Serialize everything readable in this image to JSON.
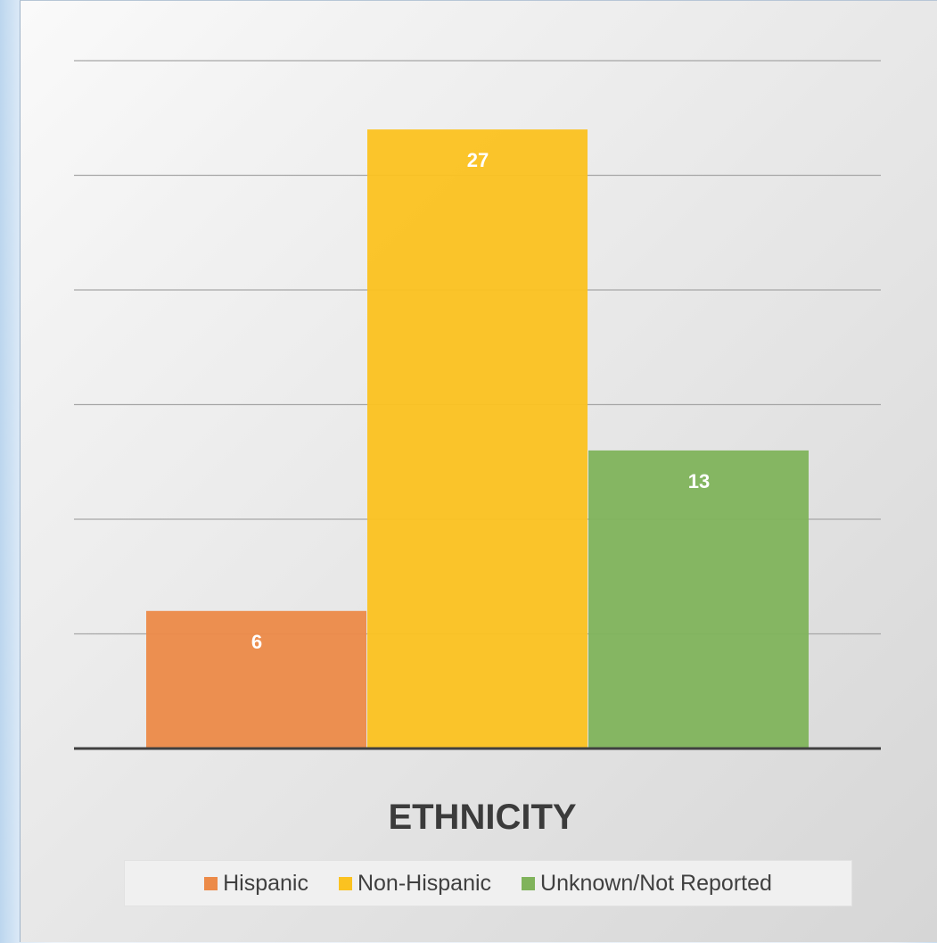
{
  "chart_data": {
    "type": "bar",
    "title": "ETHNICITY",
    "xlabel": "",
    "ylabel": "",
    "categories": [
      "Hispanic",
      "Non-Hispanic",
      "Unknown/Not Reported"
    ],
    "values": [
      6,
      27,
      13
    ],
    "colors": [
      "#ec8a48",
      "#fbc220",
      "#80b35b"
    ],
    "ylim": [
      0,
      30
    ],
    "grid_step": 5,
    "grid": true,
    "legend_position": "bottom",
    "data_labels": [
      "6",
      "27",
      "13"
    ]
  }
}
